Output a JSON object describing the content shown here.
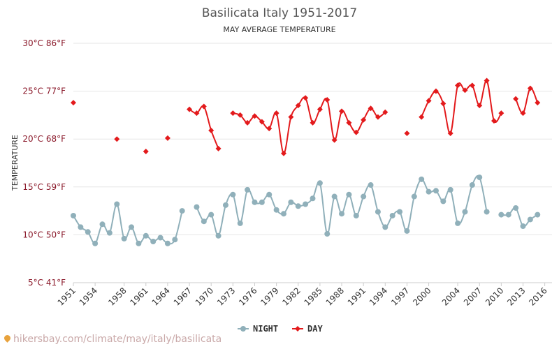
{
  "watermark": "hikersbay.com/climate/may/italy/basilicata",
  "chart_data": {
    "type": "line",
    "title": "Basilicata Italy 1951-2017",
    "subtitle": "MAY AVERAGE TEMPERATURE",
    "ylabel": "TEMPERATURE",
    "ylim": [
      5,
      30
    ],
    "xlim": [
      1951,
      2017
    ],
    "grid": true,
    "legend_position": "bottom-center",
    "y_ticks": [
      {
        "value": 5,
        "label": "5°C 41°F"
      },
      {
        "value": 10,
        "label": "10°C 50°F"
      },
      {
        "value": 15,
        "label": "15°C 59°F"
      },
      {
        "value": 20,
        "label": "20°C 68°F"
      },
      {
        "value": 25,
        "label": "25°C 77°F"
      },
      {
        "value": 30,
        "label": "30°C 86°F"
      }
    ],
    "x_ticks": [
      {
        "value": 1951,
        "label": "1951"
      },
      {
        "value": 1954,
        "label": "1954"
      },
      {
        "value": 1958,
        "label": "1958"
      },
      {
        "value": 1961,
        "label": "1961"
      },
      {
        "value": 1964,
        "label": "1964"
      },
      {
        "value": 1967,
        "label": "1967"
      },
      {
        "value": 1970,
        "label": "1970"
      },
      {
        "value": 1973,
        "label": "1973"
      },
      {
        "value": 1976,
        "label": "1976"
      },
      {
        "value": 1979,
        "label": "1979"
      },
      {
        "value": 1982,
        "label": "1982"
      },
      {
        "value": 1985,
        "label": "1985"
      },
      {
        "value": 1988,
        "label": "1988"
      },
      {
        "value": 1991,
        "label": "1991"
      },
      {
        "value": 1994,
        "label": "1994"
      },
      {
        "value": 1997,
        "label": "1997"
      },
      {
        "value": 2000,
        "label": "2000"
      },
      {
        "value": 2004,
        "label": "2004"
      },
      {
        "value": 2007,
        "label": "2007"
      },
      {
        "value": 2010,
        "label": "2010"
      },
      {
        "value": 2013,
        "label": "2013"
      },
      {
        "value": 2016,
        "label": "2016"
      }
    ],
    "series": [
      {
        "name": "NIGHT",
        "color": "#90b0ba",
        "marker": "circle",
        "points": [
          [
            1951,
            12.0
          ],
          [
            1952,
            10.8
          ],
          [
            1953,
            10.3
          ],
          [
            1954,
            9.1
          ],
          [
            1955,
            11.1
          ],
          [
            1956,
            10.2
          ],
          [
            1957,
            13.2
          ],
          [
            1958,
            9.6
          ],
          [
            1959,
            10.8
          ],
          [
            1960,
            9.1
          ],
          [
            1961,
            9.9
          ],
          [
            1962,
            9.3
          ],
          [
            1963,
            9.7
          ],
          [
            1964,
            9.1
          ],
          [
            1965,
            9.5
          ],
          [
            1966,
            12.5
          ],
          [
            1968,
            12.9
          ],
          [
            1969,
            11.4
          ],
          [
            1970,
            12.1
          ],
          [
            1971,
            9.9
          ],
          [
            1972,
            13.1
          ],
          [
            1973,
            14.2
          ],
          [
            1974,
            11.2
          ],
          [
            1975,
            14.7
          ],
          [
            1976,
            13.4
          ],
          [
            1977,
            13.4
          ],
          [
            1978,
            14.2
          ],
          [
            1979,
            12.6
          ],
          [
            1980,
            12.2
          ],
          [
            1981,
            13.4
          ],
          [
            1982,
            13.0
          ],
          [
            1983,
            13.2
          ],
          [
            1984,
            13.8
          ],
          [
            1985,
            15.4
          ],
          [
            1986,
            10.1
          ],
          [
            1987,
            14.0
          ],
          [
            1988,
            12.2
          ],
          [
            1989,
            14.2
          ],
          [
            1990,
            12.0
          ],
          [
            1991,
            14.0
          ],
          [
            1992,
            15.2
          ],
          [
            1993,
            12.4
          ],
          [
            1994,
            10.8
          ],
          [
            1995,
            12.0
          ],
          [
            1996,
            12.4
          ],
          [
            1997,
            10.4
          ],
          [
            1998,
            14.0
          ],
          [
            1999,
            15.8
          ],
          [
            2000,
            14.5
          ],
          [
            2001,
            14.6
          ],
          [
            2002,
            13.5
          ],
          [
            2003,
            14.7
          ],
          [
            2004,
            11.2
          ],
          [
            2005,
            12.4
          ],
          [
            2006,
            15.2
          ],
          [
            2007,
            16.0
          ],
          [
            2008,
            12.4
          ],
          [
            2010,
            12.1
          ],
          [
            2011,
            12.1
          ],
          [
            2012,
            12.8
          ],
          [
            2013,
            10.9
          ],
          [
            2014,
            11.6
          ],
          [
            2015,
            12.1
          ]
        ]
      },
      {
        "name": "DAY",
        "color": "#e31a1c",
        "marker": "diamond",
        "points": [
          [
            1951,
            23.8
          ],
          [
            1957,
            20.0
          ],
          [
            1961,
            18.7
          ],
          [
            1964,
            20.1
          ],
          [
            1967,
            23.1
          ],
          [
            1968,
            22.7
          ],
          [
            1969,
            23.4
          ],
          [
            1970,
            20.9
          ],
          [
            1971,
            19.0
          ],
          [
            1973,
            22.7
          ],
          [
            1974,
            22.5
          ],
          [
            1975,
            21.7
          ],
          [
            1976,
            22.4
          ],
          [
            1977,
            21.8
          ],
          [
            1978,
            21.1
          ],
          [
            1979,
            22.7
          ],
          [
            1980,
            18.5
          ],
          [
            1981,
            22.3
          ],
          [
            1982,
            23.5
          ],
          [
            1983,
            24.3
          ],
          [
            1984,
            21.7
          ],
          [
            1985,
            23.1
          ],
          [
            1986,
            24.1
          ],
          [
            1987,
            19.9
          ],
          [
            1988,
            22.9
          ],
          [
            1989,
            21.7
          ],
          [
            1990,
            20.7
          ],
          [
            1991,
            22.0
          ],
          [
            1992,
            23.2
          ],
          [
            1993,
            22.3
          ],
          [
            1994,
            22.8
          ],
          [
            1997,
            20.6
          ],
          [
            1999,
            22.3
          ],
          [
            2000,
            24.0
          ],
          [
            2001,
            25.0
          ],
          [
            2002,
            23.7
          ],
          [
            2003,
            20.6
          ],
          [
            2004,
            25.6
          ],
          [
            2005,
            25.1
          ],
          [
            2006,
            25.6
          ],
          [
            2007,
            23.5
          ],
          [
            2008,
            26.1
          ],
          [
            2009,
            21.9
          ],
          [
            2010,
            22.7
          ],
          [
            2012,
            24.2
          ],
          [
            2013,
            22.7
          ],
          [
            2014,
            25.3
          ],
          [
            2015,
            23.8
          ]
        ]
      }
    ]
  }
}
